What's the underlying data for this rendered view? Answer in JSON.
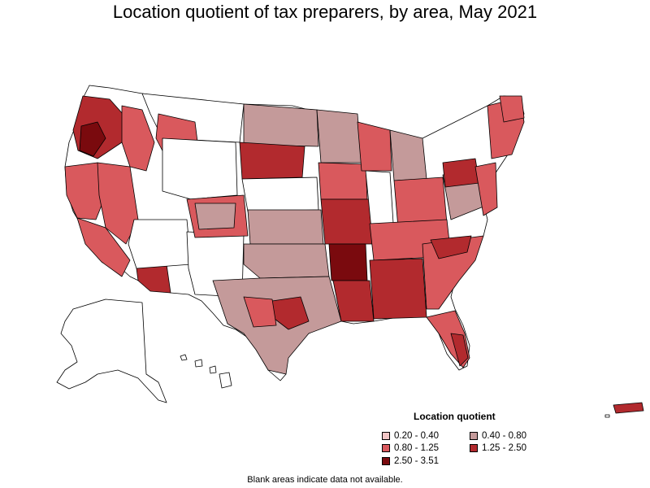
{
  "title": "Location quotient of tax preparers, by area, May 2021",
  "legend": {
    "title": "Location quotient",
    "items": [
      {
        "label": "0.20 - 0.40",
        "color": "#f2c6c6"
      },
      {
        "label": "0.40 - 0.80",
        "color": "#c49a9a"
      },
      {
        "label": "0.80 - 1.25",
        "color": "#d9595d"
      },
      {
        "label": "1.25 - 2.50",
        "color": "#b22a2e"
      },
      {
        "label": "2.50 - 3.51",
        "color": "#7a0a0e"
      }
    ]
  },
  "footnote": "Blank areas indicate data not available.",
  "colors": {
    "no_data": "#ffffff",
    "border": "#000000"
  }
}
